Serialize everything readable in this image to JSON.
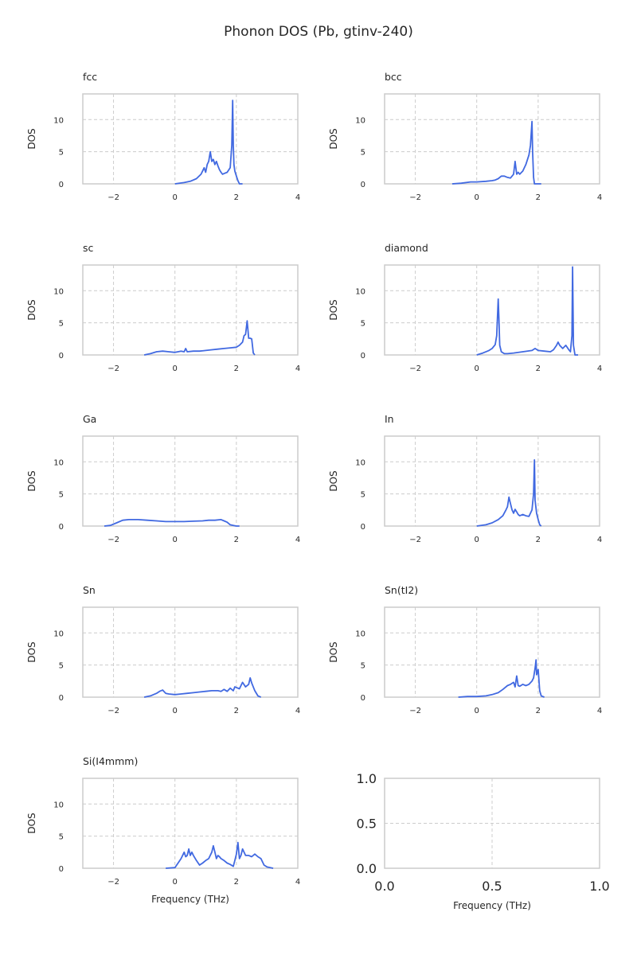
{
  "title": "Phonon DOS (Pb, gtinv-240)",
  "colors": {
    "line": "#4169e1",
    "axis": "#cccccc",
    "text": "#262626"
  },
  "chart_data": [
    {
      "type": "line",
      "title": "fcc",
      "xlabel": "",
      "ylabel": "DOS",
      "xlim": [
        -3,
        4
      ],
      "ylim": [
        0,
        14
      ],
      "xticks": [
        "−2",
        "0",
        "2",
        "4"
      ],
      "yticks": [
        "0",
        "5",
        "10"
      ],
      "grid": true,
      "series": [
        {
          "x": [
            0.0,
            0.3,
            0.5,
            0.7,
            0.85,
            0.95,
            1.0,
            1.05,
            1.1,
            1.15,
            1.2,
            1.25,
            1.3,
            1.35,
            1.4,
            1.45,
            1.5,
            1.55,
            1.6,
            1.7,
            1.8,
            1.85,
            1.88,
            1.9,
            1.92,
            1.95,
            2.0,
            2.05,
            2.1,
            2.2
          ],
          "y": [
            0.0,
            0.2,
            0.4,
            0.8,
            1.5,
            2.5,
            1.8,
            3.0,
            3.5,
            5.0,
            3.5,
            3.8,
            3.0,
            3.5,
            2.8,
            2.2,
            1.8,
            1.5,
            1.6,
            1.8,
            2.5,
            6.0,
            13.0,
            6.0,
            3.0,
            2.0,
            1.2,
            0.5,
            0.0,
            0.0
          ]
        }
      ]
    },
    {
      "type": "line",
      "title": "bcc",
      "xlabel": "",
      "ylabel": "DOS",
      "xlim": [
        -3,
        4
      ],
      "ylim": [
        0,
        14
      ],
      "xticks": [
        "−2",
        "0",
        "2",
        "4"
      ],
      "yticks": [
        "0",
        "5",
        "10"
      ],
      "grid": true,
      "series": [
        {
          "x": [
            -0.8,
            -0.5,
            -0.2,
            0.0,
            0.3,
            0.5,
            0.6,
            0.7,
            0.8,
            0.9,
            1.0,
            1.1,
            1.2,
            1.25,
            1.3,
            1.35,
            1.4,
            1.5,
            1.6,
            1.7,
            1.75,
            1.8,
            1.82,
            1.85,
            1.88,
            2.0,
            2.1
          ],
          "y": [
            0.0,
            0.1,
            0.3,
            0.3,
            0.4,
            0.5,
            0.6,
            0.8,
            1.2,
            1.2,
            1.0,
            0.9,
            1.5,
            3.5,
            1.5,
            1.8,
            1.5,
            2.0,
            3.0,
            4.5,
            6.0,
            9.7,
            5.0,
            1.0,
            0.0,
            0.0,
            0.0
          ]
        }
      ]
    },
    {
      "type": "line",
      "title": "sc",
      "xlabel": "",
      "ylabel": "DOS",
      "xlim": [
        -3,
        4
      ],
      "ylim": [
        0,
        14
      ],
      "xticks": [
        "−2",
        "0",
        "2",
        "4"
      ],
      "yticks": [
        "0",
        "5",
        "10"
      ],
      "grid": true,
      "series": [
        {
          "x": [
            -1.0,
            -0.8,
            -0.6,
            -0.4,
            -0.2,
            0.0,
            0.2,
            0.3,
            0.35,
            0.4,
            0.6,
            0.8,
            1.0,
            1.2,
            1.4,
            1.6,
            1.8,
            2.0,
            2.1,
            2.2,
            2.25,
            2.3,
            2.35,
            2.4,
            2.45,
            2.5,
            2.55,
            2.6
          ],
          "y": [
            0.0,
            0.2,
            0.5,
            0.6,
            0.5,
            0.4,
            0.6,
            0.5,
            1.0,
            0.5,
            0.6,
            0.6,
            0.7,
            0.8,
            0.9,
            1.0,
            1.1,
            1.2,
            1.5,
            2.0,
            3.0,
            3.2,
            5.3,
            2.6,
            2.6,
            2.5,
            0.3,
            0.0
          ]
        }
      ]
    },
    {
      "type": "line",
      "title": "diamond",
      "xlabel": "",
      "ylabel": "DOS",
      "xlim": [
        -3,
        4
      ],
      "ylim": [
        0,
        14
      ],
      "xticks": [
        "−2",
        "0",
        "2",
        "4"
      ],
      "yticks": [
        "0",
        "5",
        "10"
      ],
      "grid": true,
      "series": [
        {
          "x": [
            0.0,
            0.2,
            0.4,
            0.5,
            0.6,
            0.65,
            0.7,
            0.72,
            0.75,
            0.8,
            0.9,
            1.0,
            1.2,
            1.5,
            1.8,
            1.9,
            2.0,
            2.2,
            2.4,
            2.5,
            2.6,
            2.65,
            2.7,
            2.8,
            2.9,
            3.0,
            3.05,
            3.1,
            3.12,
            3.15,
            3.2,
            3.3
          ],
          "y": [
            0.0,
            0.3,
            0.7,
            1.0,
            1.6,
            3.0,
            8.7,
            6.0,
            1.5,
            0.5,
            0.2,
            0.2,
            0.3,
            0.5,
            0.7,
            1.0,
            0.7,
            0.6,
            0.5,
            0.8,
            1.5,
            2.0,
            1.5,
            1.0,
            1.5,
            0.8,
            0.5,
            3.0,
            13.7,
            1.5,
            0.0,
            0.0
          ]
        }
      ]
    },
    {
      "type": "line",
      "title": "Ga",
      "xlabel": "",
      "ylabel": "DOS",
      "xlim": [
        -3,
        4
      ],
      "ylim": [
        0,
        14
      ],
      "xticks": [
        "−2",
        "0",
        "2",
        "4"
      ],
      "yticks": [
        "0",
        "5",
        "10"
      ],
      "grid": true,
      "series": [
        {
          "x": [
            -2.3,
            -2.1,
            -1.9,
            -1.7,
            -1.5,
            -1.2,
            -0.9,
            -0.6,
            -0.3,
            0.0,
            0.3,
            0.6,
            0.9,
            1.1,
            1.3,
            1.5,
            1.6,
            1.7,
            1.8,
            1.9,
            2.0,
            2.1
          ],
          "y": [
            0.0,
            0.1,
            0.5,
            0.9,
            1.0,
            1.0,
            0.9,
            0.8,
            0.7,
            0.7,
            0.7,
            0.75,
            0.8,
            0.9,
            0.9,
            1.0,
            0.8,
            0.6,
            0.2,
            0.1,
            0.0,
            0.0
          ]
        }
      ]
    },
    {
      "type": "line",
      "title": "In",
      "xlabel": "",
      "ylabel": "DOS",
      "xlim": [
        -3,
        4
      ],
      "ylim": [
        0,
        14
      ],
      "xticks": [
        "−2",
        "0",
        "2",
        "4"
      ],
      "yticks": [
        "0",
        "5",
        "10"
      ],
      "grid": true,
      "series": [
        {
          "x": [
            0.0,
            0.3,
            0.5,
            0.7,
            0.85,
            0.95,
            1.0,
            1.05,
            1.1,
            1.15,
            1.2,
            1.25,
            1.3,
            1.35,
            1.4,
            1.5,
            1.6,
            1.7,
            1.8,
            1.85,
            1.88,
            1.9,
            1.95,
            2.0,
            2.05,
            2.1
          ],
          "y": [
            0.0,
            0.2,
            0.5,
            1.0,
            1.6,
            2.5,
            3.0,
            4.5,
            3.5,
            2.5,
            2.0,
            2.6,
            2.2,
            1.8,
            1.6,
            1.8,
            1.6,
            1.5,
            2.5,
            5.0,
            10.3,
            4.0,
            2.0,
            1.0,
            0.2,
            0.0
          ]
        }
      ]
    },
    {
      "type": "line",
      "title": "Sn",
      "xlabel": "",
      "ylabel": "DOS",
      "xlim": [
        -3,
        4
      ],
      "ylim": [
        0,
        14
      ],
      "xticks": [
        "−2",
        "0",
        "2",
        "4"
      ],
      "yticks": [
        "0",
        "5",
        "10"
      ],
      "grid": true,
      "series": [
        {
          "x": [
            -1.0,
            -0.8,
            -0.6,
            -0.5,
            -0.4,
            -0.3,
            -0.2,
            0.0,
            0.2,
            0.4,
            0.6,
            0.8,
            1.0,
            1.2,
            1.4,
            1.5,
            1.6,
            1.7,
            1.8,
            1.9,
            1.95,
            2.0,
            2.1,
            2.2,
            2.3,
            2.4,
            2.45,
            2.5,
            2.6,
            2.7,
            2.8
          ],
          "y": [
            0.0,
            0.2,
            0.6,
            0.9,
            1.1,
            0.6,
            0.5,
            0.4,
            0.5,
            0.6,
            0.7,
            0.8,
            0.9,
            1.0,
            1.0,
            0.9,
            1.2,
            0.9,
            1.4,
            1.0,
            1.6,
            1.5,
            1.3,
            2.3,
            1.6,
            2.0,
            3.0,
            2.2,
            1.0,
            0.2,
            0.0
          ]
        }
      ]
    },
    {
      "type": "line",
      "title": "Sn(tI2)",
      "xlabel": "",
      "ylabel": "DOS",
      "xlim": [
        -3,
        4
      ],
      "ylim": [
        0,
        14
      ],
      "xticks": [
        "−2",
        "0",
        "2",
        "4"
      ],
      "yticks": [
        "0",
        "5",
        "10"
      ],
      "grid": true,
      "series": [
        {
          "x": [
            -0.6,
            -0.3,
            0.0,
            0.3,
            0.5,
            0.7,
            0.85,
            1.0,
            1.1,
            1.2,
            1.25,
            1.3,
            1.35,
            1.4,
            1.5,
            1.6,
            1.7,
            1.8,
            1.85,
            1.9,
            1.93,
            1.95,
            2.0,
            2.05,
            2.1,
            2.2
          ],
          "y": [
            0.0,
            0.1,
            0.1,
            0.2,
            0.4,
            0.7,
            1.2,
            1.8,
            2.0,
            2.3,
            1.6,
            3.3,
            1.8,
            1.7,
            2.0,
            1.8,
            2.0,
            2.5,
            3.0,
            4.5,
            5.8,
            3.5,
            4.3,
            1.0,
            0.2,
            0.0
          ]
        }
      ]
    },
    {
      "type": "line",
      "title": "Si(I4mmm)",
      "xlabel": "Frequency (THz)",
      "ylabel": "DOS",
      "xlim": [
        -3,
        4
      ],
      "ylim": [
        0,
        14
      ],
      "xticks": [
        "−2",
        "0",
        "2",
        "4"
      ],
      "yticks": [
        "0",
        "5",
        "10"
      ],
      "grid": true,
      "series": [
        {
          "x": [
            -0.3,
            0.0,
            0.1,
            0.2,
            0.3,
            0.35,
            0.4,
            0.45,
            0.5,
            0.55,
            0.6,
            0.7,
            0.8,
            0.9,
            1.0,
            1.1,
            1.2,
            1.25,
            1.3,
            1.35,
            1.4,
            1.45,
            1.5,
            1.6,
            1.7,
            1.8,
            1.9,
            1.95,
            2.0,
            2.05,
            2.1,
            2.15,
            2.2,
            2.3,
            2.4,
            2.5,
            2.6,
            2.7,
            2.8,
            2.9,
            3.0,
            3.2
          ],
          "y": [
            0.0,
            0.1,
            0.8,
            1.5,
            2.5,
            1.8,
            2.0,
            3.0,
            2.0,
            2.5,
            2.0,
            1.2,
            0.5,
            0.8,
            1.2,
            1.5,
            2.5,
            3.5,
            2.5,
            1.5,
            2.0,
            1.8,
            1.5,
            1.2,
            0.8,
            0.6,
            0.3,
            1.2,
            2.2,
            4.0,
            1.5,
            2.0,
            3.0,
            2.0,
            2.0,
            1.8,
            2.2,
            1.8,
            1.5,
            0.5,
            0.2,
            0.0
          ]
        }
      ]
    },
    {
      "type": "line",
      "title": "",
      "xlabel": "Frequency (THz)",
      "ylabel": "",
      "xlim": [
        0,
        1
      ],
      "ylim": [
        0,
        1
      ],
      "xticks": [
        "0.0",
        "0.5",
        "1.0"
      ],
      "yticks": [
        "0.0",
        "0.5",
        "1.0"
      ],
      "grid": true,
      "series": []
    }
  ]
}
